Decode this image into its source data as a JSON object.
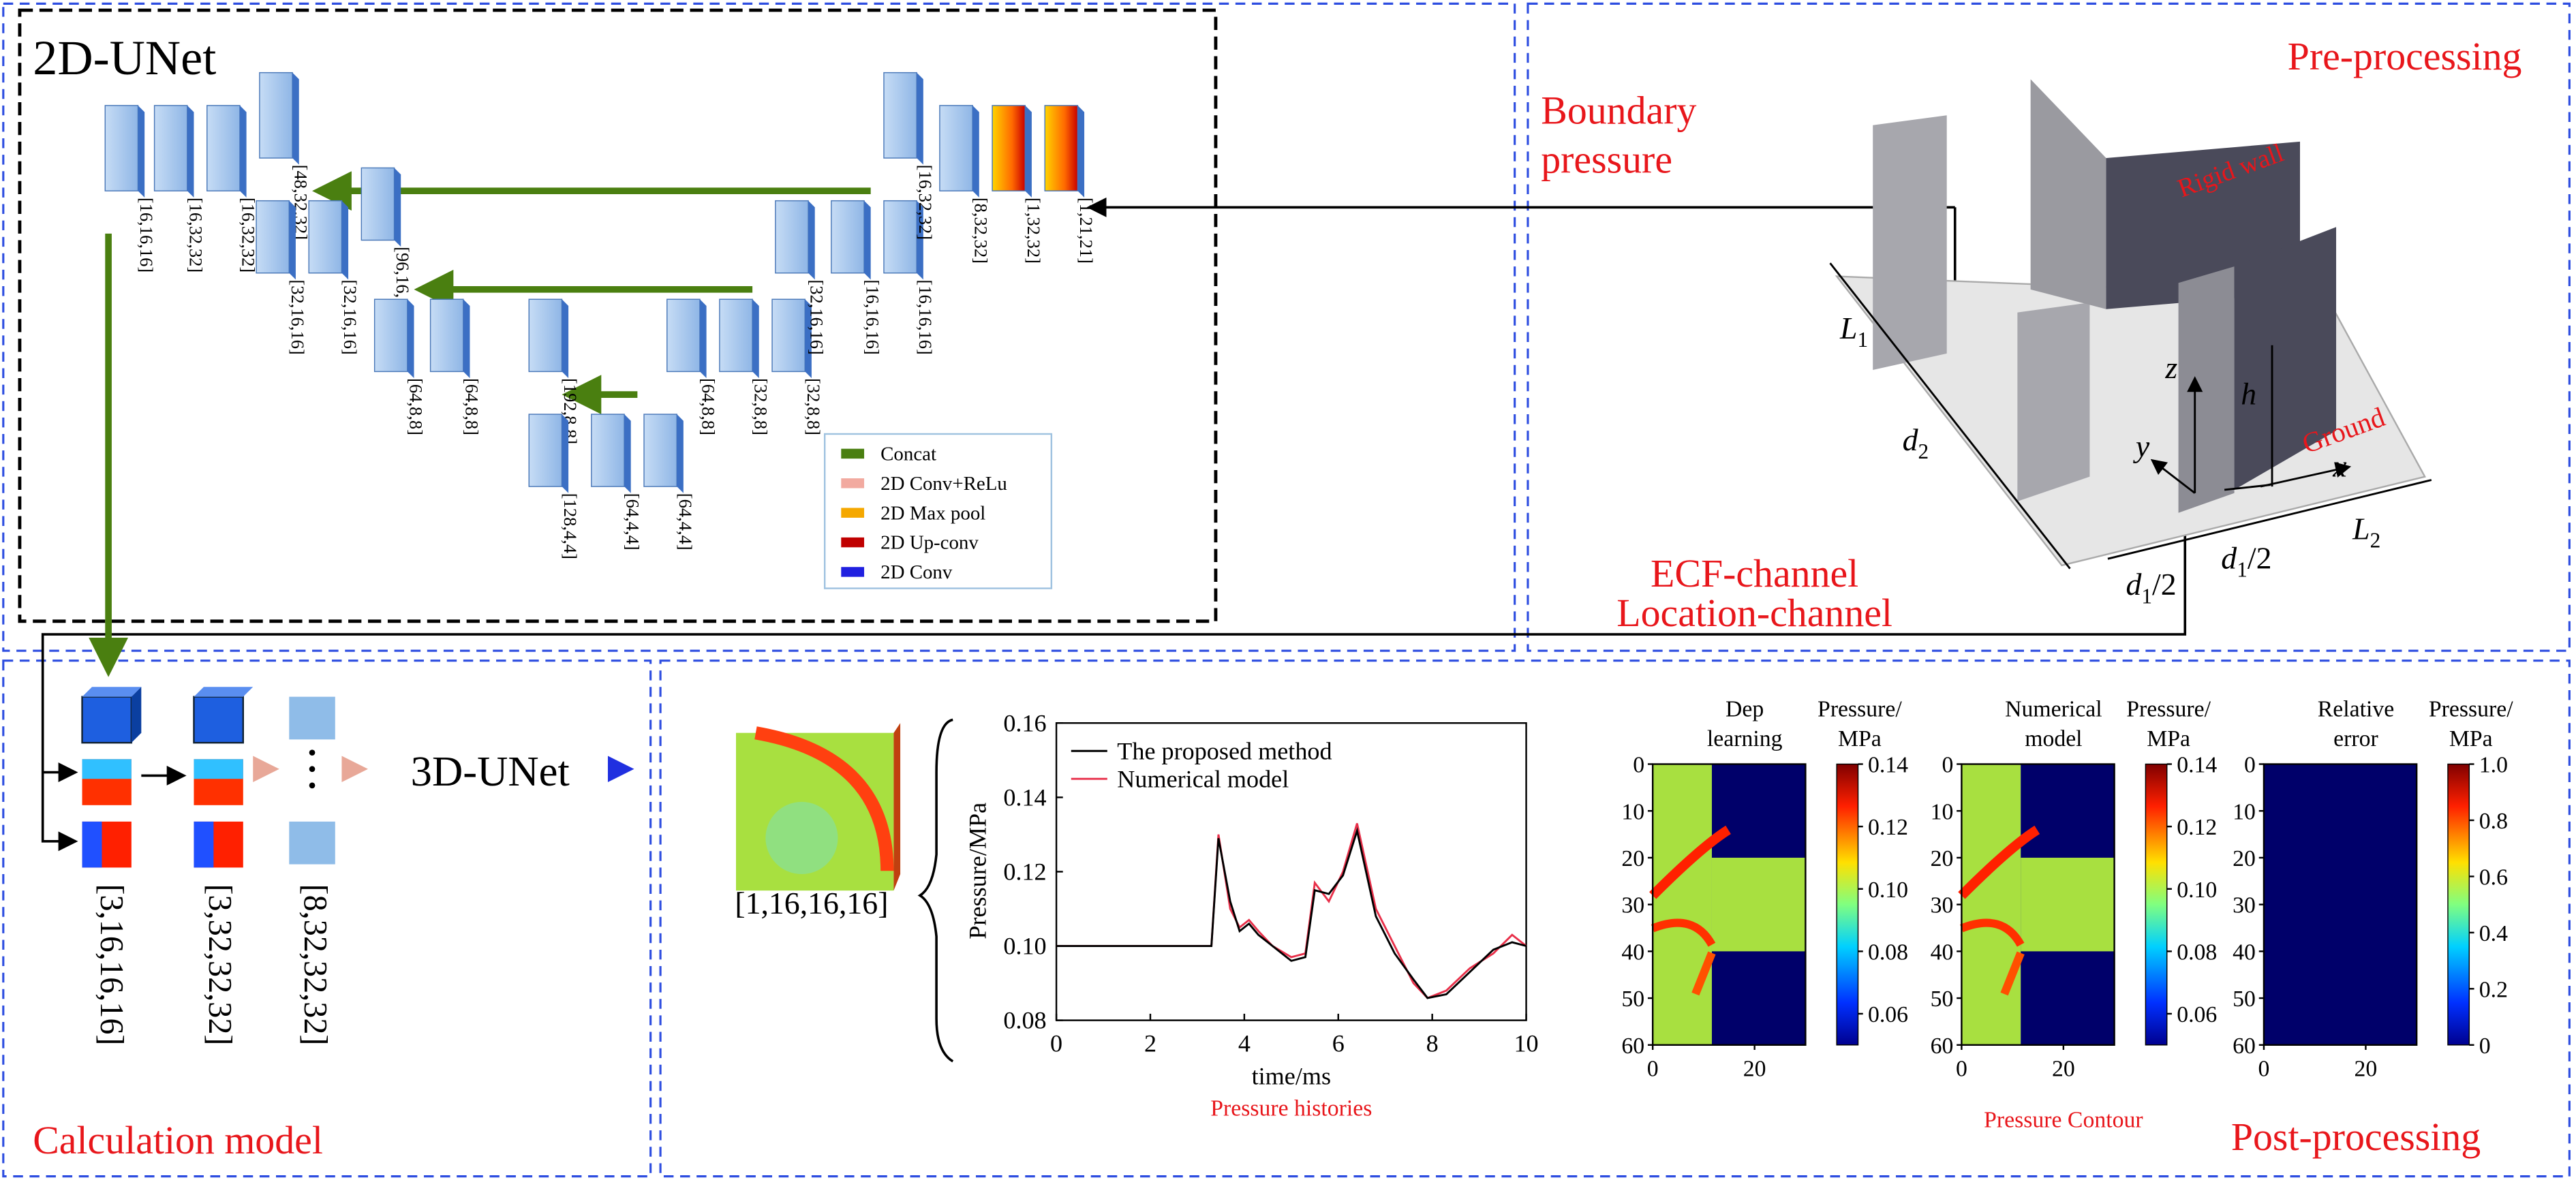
{
  "unet2d": {
    "title": "2D-UNet",
    "layer_labels": [
      "[16,16,16]",
      "[16,32,32]",
      "[16,32,32]",
      "[48,32,32]",
      "[32,16,16]",
      "[32,16,16]",
      "[96,16,16]",
      "[64,8,8]",
      "[64,8,8]",
      "[192,8,8]",
      "[128,4,4]",
      "[64,4,4]",
      "[64,4,4]",
      "[64,8,8]",
      "[32,8,8]",
      "[32,8,8]",
      "[32,16,16]",
      "[16,16,16]",
      "[16,16,16]",
      "[16,32,32]",
      "[8,32,32]",
      "[1,32,32]",
      "[1,21,21]"
    ],
    "legend": [
      "Concat",
      "2D Conv+ReLu",
      "2D Max pool",
      "2D Up-conv",
      "2D Conv"
    ]
  },
  "preprocessing": {
    "title": "Pre-processing",
    "boundary": [
      "Boundary",
      "pressure"
    ],
    "rigid_wall": "Rigid wall",
    "ground": "Ground",
    "channels": [
      "ECF-channel",
      "Location-channel"
    ],
    "dims": [
      {
        "text": "L",
        "sub": "1"
      },
      {
        "text": "d",
        "sub": "2"
      },
      {
        "text": "z"
      },
      {
        "text": "h"
      },
      {
        "text": "y"
      },
      {
        "text": "x"
      },
      {
        "text": "L",
        "sub": "2"
      },
      {
        "text": "d",
        "sub": "1",
        "tail": "/2"
      },
      {
        "text": "d",
        "sub": "1",
        "tail": "/2"
      }
    ]
  },
  "calculation": {
    "title": "Calculation model",
    "net": "3D-UNet",
    "shapes": [
      "[3,16,16,16]",
      "[3,32,32,32]",
      "[8,32,32,32]"
    ]
  },
  "postprocessing": {
    "title": "Post-processing",
    "cube_label": "[1,16,16,16]",
    "history": {
      "type": "line",
      "caption": "Pressure histories",
      "xlabel": "time/ms",
      "ylabel": "Pressure/MPa",
      "x": [
        0,
        3.3,
        3.45,
        3.7,
        3.9,
        4.1,
        4.3,
        4.6,
        5.0,
        5.3,
        5.5,
        5.8,
        6.1,
        6.4,
        6.8,
        7.2,
        7.6,
        7.9,
        8.3,
        8.8,
        9.3,
        9.7,
        10
      ],
      "series": [
        {
          "name": "The proposed method",
          "color": "#000000",
          "values": [
            0.1,
            0.1,
            0.129,
            0.112,
            0.104,
            0.106,
            0.103,
            0.1,
            0.096,
            0.097,
            0.115,
            0.114,
            0.119,
            0.131,
            0.108,
            0.098,
            0.091,
            0.086,
            0.087,
            0.093,
            0.099,
            0.101,
            0.1
          ]
        },
        {
          "name": "Numerical model",
          "color": "#e8304a",
          "values": [
            0.1,
            0.1,
            0.13,
            0.11,
            0.105,
            0.107,
            0.104,
            0.1,
            0.097,
            0.098,
            0.117,
            0.112,
            0.12,
            0.133,
            0.11,
            0.1,
            0.09,
            0.086,
            0.088,
            0.094,
            0.098,
            0.103,
            0.1
          ]
        }
      ],
      "xlim": [
        0,
        10
      ],
      "ylim": [
        0.08,
        0.16
      ],
      "xticks": [
        0,
        2,
        4,
        6,
        8,
        10
      ],
      "yticks": [
        0.08,
        {
          "value": 0.1,
          "label": "0.10"
        },
        0.12,
        0.14,
        0.16
      ]
    },
    "contour_caption": "Pressure Contour",
    "maps": [
      {
        "title": [
          "Dep",
          "learning"
        ],
        "unit": [
          "Pressure/",
          "MPa"
        ],
        "xticks": [
          0,
          20
        ],
        "yticks": [
          0,
          10,
          20,
          30,
          40,
          50,
          60
        ],
        "clim": [
          0.05,
          0.14
        ],
        "cticks": [
          0.06,
          0.08,
          {
            "value": 0.1,
            "label": "0.10"
          },
          0.12,
          0.14
        ]
      },
      {
        "title": [
          "Numerical",
          "model"
        ],
        "unit": [
          "Pressure/",
          "MPa"
        ],
        "xticks": [
          0,
          20
        ],
        "yticks": [
          0,
          10,
          20,
          30,
          40,
          50,
          60
        ],
        "clim": [
          0.05,
          0.14
        ],
        "cticks": [
          0.06,
          0.08,
          {
            "value": 0.1,
            "label": "0.10"
          },
          0.12,
          0.14
        ]
      },
      {
        "title": [
          "Relative",
          "error"
        ],
        "unit": [
          "Pressure/",
          "MPa"
        ],
        "xticks": [
          0,
          20
        ],
        "yticks": [
          0,
          10,
          20,
          30,
          40,
          50,
          60
        ],
        "clim": [
          0,
          1
        ],
        "cticks": [
          0,
          0.2,
          0.4,
          0.6,
          0.8,
          {
            "value": 1,
            "label": "1.0"
          }
        ]
      }
    ]
  }
}
